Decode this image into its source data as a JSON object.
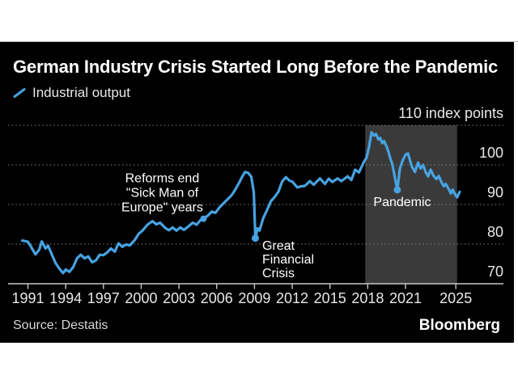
{
  "header": {
    "title": "German Industry Crisis Started Long Before the Pandemic",
    "legend_label": "Industrial output"
  },
  "footer": {
    "source": "Source: Destatis",
    "brand": "Bloomberg"
  },
  "colors": {
    "background": "#000000",
    "line": "#47a2e1",
    "band": "#3a3a3a",
    "gridline": "#828282",
    "axis": "#c8c8c8",
    "axis_text": "#e8e8e8",
    "annotation_text": "#ffffff"
  },
  "chart_data": {
    "type": "line",
    "title": "German Industry Crisis Started Long Before the Pandemic",
    "y_axis_caption": "110 index points",
    "unit": "index points",
    "ylim": [
      70,
      110
    ],
    "yticks": [
      110,
      100,
      90,
      80,
      70
    ],
    "xticks": [
      1991,
      1994,
      1997,
      2000,
      2003,
      2006,
      2009,
      2012,
      2015,
      2018,
      2021,
      2025
    ],
    "grid": "horizontal-dotted",
    "legend_position": "top-left",
    "highlight_band": {
      "from": 2017.8,
      "to": 2025.1
    },
    "series": [
      {
        "name": "Industrial output",
        "x": [
          1990.55,
          1991.0,
          1991.25,
          1991.6,
          1991.9,
          1992.1,
          1992.4,
          1992.6,
          1992.9,
          1993.2,
          1993.5,
          1993.8,
          1994.0,
          1994.3,
          1994.6,
          1994.9,
          1995.2,
          1995.5,
          1995.8,
          1996.1,
          1996.4,
          1996.7,
          1997.0,
          1997.3,
          1997.6,
          1997.9,
          1998.2,
          1998.5,
          1998.8,
          1999.1,
          1999.5,
          1999.8,
          2000.1,
          2000.5,
          2000.9,
          2001.2,
          2001.5,
          2001.9,
          2002.2,
          2002.5,
          2002.8,
          2003.1,
          2003.4,
          2003.8,
          2004.1,
          2004.4,
          2004.7,
          2004.95,
          2005.3,
          2005.6,
          2005.9,
          2006.2,
          2006.6,
          2006.9,
          2007.2,
          2007.5,
          2007.8,
          2008.0,
          2008.25,
          2008.5,
          2008.75,
          2008.95,
          2009.07,
          2009.25,
          2009.4,
          2009.7,
          2010.0,
          2010.3,
          2010.6,
          2010.9,
          2011.2,
          2011.5,
          2011.8,
          2012.0,
          2012.4,
          2012.7,
          2013.0,
          2013.4,
          2013.7,
          2014.2,
          2014.6,
          2014.9,
          2015.2,
          2015.6,
          2015.9,
          2016.4,
          2016.7,
          2017.0,
          2017.3,
          2017.7,
          2017.9,
          2018.1,
          2018.3,
          2018.5,
          2018.65,
          2018.85,
          2019.0,
          2019.15,
          2019.3,
          2019.5,
          2019.65,
          2019.8,
          2019.95,
          2020.35,
          2020.55,
          2020.75,
          2021.0,
          2021.2,
          2021.5,
          2021.75,
          2022.0,
          2022.2,
          2022.4,
          2022.6,
          2022.8,
          2023.0,
          2023.2,
          2023.45,
          2023.65,
          2023.85,
          2024.05,
          2024.2,
          2024.45,
          2024.6,
          2024.75,
          2024.9,
          2025.1,
          2025.3
        ],
        "values": [
          80.9,
          80.6,
          79.3,
          77.4,
          78.6,
          80.7,
          78.9,
          79.6,
          77.4,
          75.2,
          73.8,
          72.7,
          73.6,
          73.0,
          74.2,
          76.4,
          77.3,
          76.4,
          76.9,
          75.4,
          75.9,
          77.3,
          77.2,
          77.9,
          78.9,
          78.1,
          80.2,
          79.3,
          79.9,
          79.7,
          81.1,
          82.6,
          83.4,
          84.9,
          85.8,
          85.0,
          85.4,
          84.1,
          83.5,
          84.2,
          83.4,
          84.2,
          83.6,
          84.6,
          85.4,
          84.9,
          86.0,
          86.4,
          87.2,
          88.2,
          87.9,
          89.2,
          90.5,
          91.4,
          92.4,
          93.9,
          95.6,
          96.9,
          98.2,
          98.0,
          97.0,
          93.0,
          81.5,
          84.0,
          83.4,
          86.6,
          88.6,
          90.8,
          91.9,
          93.2,
          95.8,
          96.9,
          96.0,
          95.8,
          94.3,
          94.6,
          94.7,
          95.9,
          95.0,
          96.6,
          95.2,
          96.5,
          95.7,
          96.6,
          95.9,
          97.1,
          96.2,
          98.8,
          98.1,
          100.8,
          101.8,
          104.5,
          108.2,
          107.4,
          107.8,
          106.4,
          106.8,
          105.5,
          106.0,
          104.6,
          103.3,
          101.6,
          100.2,
          93.7,
          99.0,
          100.9,
          102.6,
          102.9,
          99.6,
          98.2,
          100.6,
          99.1,
          100.0,
          98.2,
          97.1,
          98.8,
          97.4,
          96.4,
          97.2,
          95.7,
          94.6,
          95.2,
          93.8,
          92.8,
          93.8,
          92.8,
          91.8,
          93.2
        ]
      }
    ],
    "annotations": [
      {
        "name": "reforms",
        "text_lines": [
          "Reforms end",
          "\"Sick Man of",
          "Europe\" years"
        ],
        "anchor_year": 2004.95,
        "anchor_value": 86.4
      },
      {
        "name": "great-financial-crisis",
        "text_lines": [
          "Great",
          "Financial",
          "Crisis"
        ],
        "anchor_year": 2009.07,
        "anchor_value": 81.5
      },
      {
        "name": "pandemic",
        "text_lines": [
          "Pandemic"
        ],
        "anchor_year": 2020.35,
        "anchor_value": 93.7
      }
    ]
  }
}
